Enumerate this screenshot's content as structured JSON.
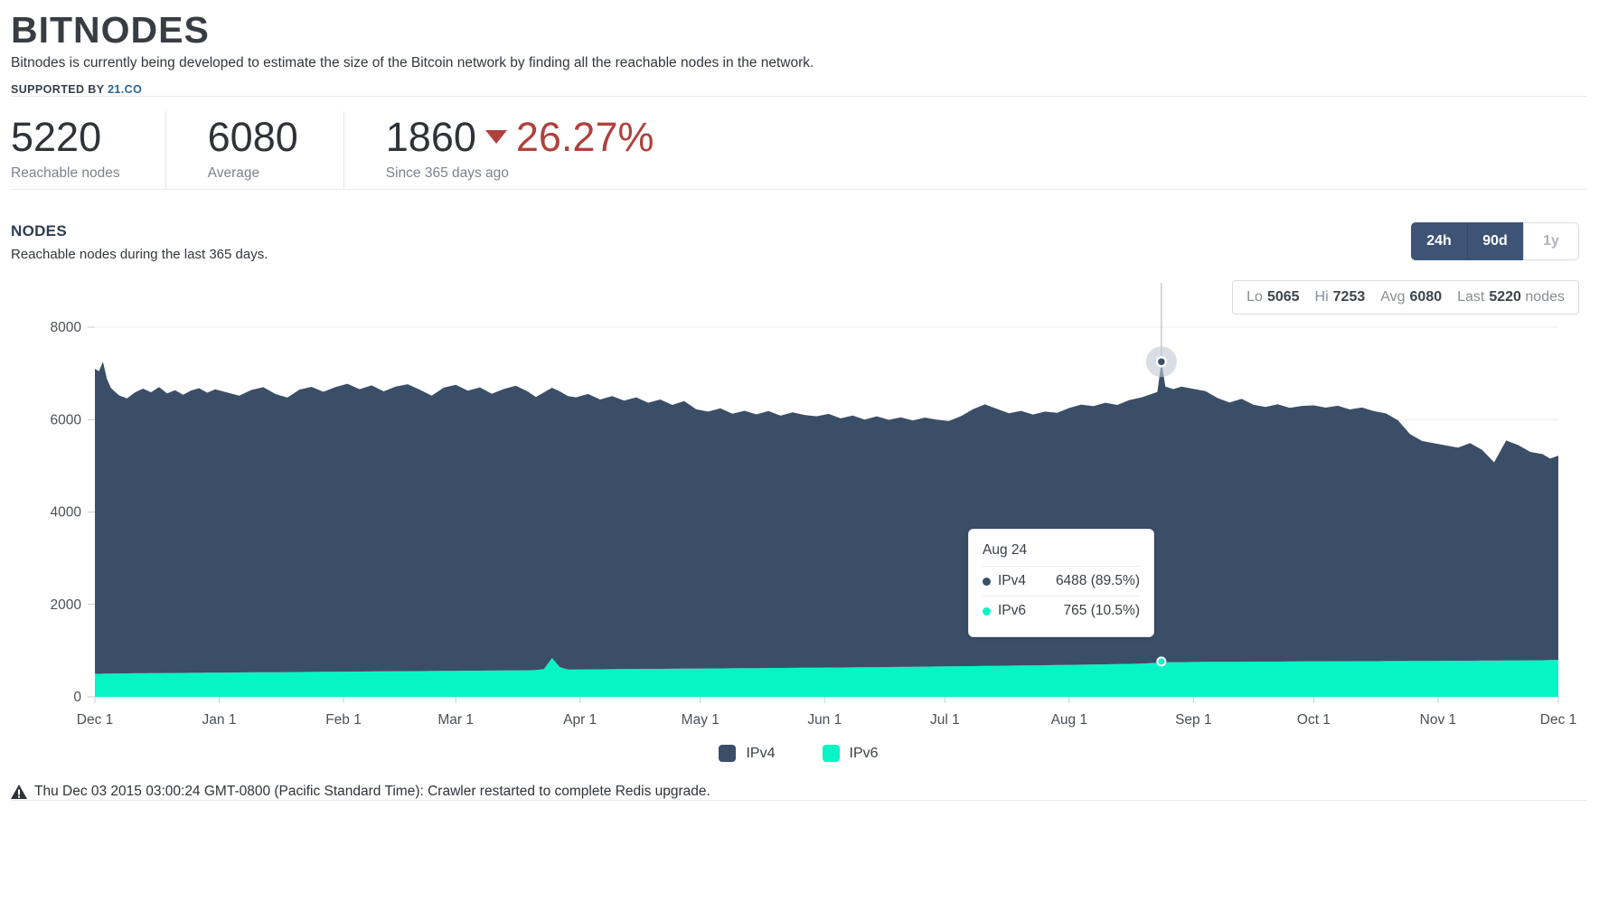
{
  "header": {
    "logo": "BITNODES",
    "tagline": "Bitnodes is currently being developed to estimate the size of the Bitcoin network by finding all the reachable nodes in the network.",
    "supported_by_label": "SUPPORTED BY",
    "supported_by_link": "21.CO"
  },
  "stats": [
    {
      "value": "5220",
      "label": "Reachable nodes"
    },
    {
      "value": "6080",
      "label": "Average"
    },
    {
      "value": "1860",
      "delta_direction": "down",
      "delta_pct": "26.27%",
      "label": "Since 365 days ago"
    }
  ],
  "section": {
    "title": "NODES",
    "subtitle": "Reachable nodes during the last 365 days.",
    "range_buttons": [
      {
        "label": "24h",
        "selected": true
      },
      {
        "label": "90d",
        "selected": true
      },
      {
        "label": "1y",
        "selected": false
      }
    ],
    "summary": {
      "lo_label": "Lo",
      "lo": "5065",
      "hi_label": "Hi",
      "hi": "7253",
      "avg_label": "Avg",
      "avg": "6080",
      "last_label": "Last",
      "last": "5220",
      "units": "nodes"
    }
  },
  "tooltip": {
    "title": "Aug 24",
    "rows": [
      {
        "name": "IPv4",
        "value": "6488 (89.5%)"
      },
      {
        "name": "IPv6",
        "value": "765 (10.5%)"
      }
    ]
  },
  "legend": [
    {
      "label": "IPv4"
    },
    {
      "label": "IPv6"
    }
  ],
  "notice": "Thu Dec 03 2015 03:00:24 GMT-0800 (Pacific Standard Time): Crawler restarted to complete Redis upgrade.",
  "colors": {
    "ipv4": "#3B4E68",
    "ipv6": "#07F5C6",
    "negative_red": "#B0413D",
    "link_blue": "#2A6496",
    "button_navy": "#3D5476",
    "heading_navy": "#2C3E50"
  },
  "chart_data": {
    "type": "area",
    "stacked": true,
    "title": "Reachable nodes during the last 365 days",
    "xlabel": "",
    "ylabel": "",
    "ylim": [
      0,
      8000
    ],
    "yticks": [
      0,
      2000,
      4000,
      6000,
      8000
    ],
    "grid": true,
    "legend_position": "bottom",
    "series_names": [
      "IPv4",
      "IPv6"
    ],
    "x_ticks": [
      {
        "day": 0,
        "label": "Dec 1"
      },
      {
        "day": 31,
        "label": "Jan 1"
      },
      {
        "day": 62,
        "label": "Feb 1"
      },
      {
        "day": 90,
        "label": "Mar 1"
      },
      {
        "day": 121,
        "label": "Apr 1"
      },
      {
        "day": 151,
        "label": "May 1"
      },
      {
        "day": 182,
        "label": "Jun 1"
      },
      {
        "day": 212,
        "label": "Jul 1"
      },
      {
        "day": 243,
        "label": "Aug 1"
      },
      {
        "day": 274,
        "label": "Sep 1"
      },
      {
        "day": 304,
        "label": "Oct 1"
      },
      {
        "day": 335,
        "label": "Nov 1"
      },
      {
        "day": 365,
        "label": "Dec 1"
      }
    ],
    "points_format": [
      "day",
      "ipv4",
      "ipv6"
    ],
    "points": [
      [
        0,
        6600,
        500
      ],
      [
        1,
        6550,
        498
      ],
      [
        2,
        6750,
        500
      ],
      [
        3,
        6380,
        502
      ],
      [
        4,
        6180,
        504
      ],
      [
        6,
        6020,
        506
      ],
      [
        8,
        5950,
        508
      ],
      [
        10,
        6080,
        510
      ],
      [
        12,
        6160,
        510
      ],
      [
        14,
        6080,
        512
      ],
      [
        16,
        6190,
        514
      ],
      [
        18,
        6050,
        516
      ],
      [
        20,
        6120,
        516
      ],
      [
        22,
        6020,
        518
      ],
      [
        24,
        6110,
        520
      ],
      [
        26,
        6160,
        520
      ],
      [
        28,
        6060,
        522
      ],
      [
        30,
        6130,
        524
      ],
      [
        33,
        6060,
        526
      ],
      [
        36,
        5990,
        528
      ],
      [
        39,
        6110,
        530
      ],
      [
        42,
        6170,
        532
      ],
      [
        45,
        6020,
        534
      ],
      [
        48,
        5940,
        536
      ],
      [
        51,
        6110,
        538
      ],
      [
        54,
        6170,
        540
      ],
      [
        57,
        6060,
        542
      ],
      [
        60,
        6160,
        544
      ],
      [
        63,
        6230,
        546
      ],
      [
        66,
        6110,
        548
      ],
      [
        69,
        6190,
        550
      ],
      [
        72,
        6060,
        552
      ],
      [
        75,
        6160,
        554
      ],
      [
        78,
        6210,
        556
      ],
      [
        81,
        6090,
        558
      ],
      [
        84,
        5960,
        560
      ],
      [
        87,
        6130,
        562
      ],
      [
        90,
        6190,
        564
      ],
      [
        93,
        6060,
        566
      ],
      [
        96,
        6130,
        568
      ],
      [
        99,
        5990,
        570
      ],
      [
        102,
        6090,
        572
      ],
      [
        105,
        6160,
        574
      ],
      [
        108,
        6030,
        576
      ],
      [
        110,
        5910,
        578
      ],
      [
        112,
        5990,
        600
      ],
      [
        114,
        5850,
        840
      ],
      [
        116,
        5970,
        640
      ],
      [
        118,
        5920,
        590
      ],
      [
        120,
        5890,
        592
      ],
      [
        123,
        5960,
        594
      ],
      [
        126,
        5840,
        596
      ],
      [
        129,
        5910,
        598
      ],
      [
        132,
        5810,
        600
      ],
      [
        135,
        5880,
        602
      ],
      [
        138,
        5760,
        604
      ],
      [
        141,
        5830,
        606
      ],
      [
        144,
        5710,
        608
      ],
      [
        147,
        5790,
        610
      ],
      [
        150,
        5610,
        612
      ],
      [
        153,
        5560,
        614
      ],
      [
        156,
        5630,
        616
      ],
      [
        159,
        5510,
        618
      ],
      [
        162,
        5570,
        620
      ],
      [
        165,
        5490,
        622
      ],
      [
        168,
        5560,
        624
      ],
      [
        171,
        5460,
        626
      ],
      [
        174,
        5530,
        628
      ],
      [
        177,
        5470,
        630
      ],
      [
        180,
        5440,
        632
      ],
      [
        183,
        5490,
        634
      ],
      [
        186,
        5390,
        636
      ],
      [
        189,
        5450,
        638
      ],
      [
        192,
        5360,
        640
      ],
      [
        195,
        5430,
        642
      ],
      [
        198,
        5350,
        645
      ],
      [
        201,
        5400,
        648
      ],
      [
        204,
        5330,
        651
      ],
      [
        207,
        5390,
        654
      ],
      [
        210,
        5340,
        657
      ],
      [
        213,
        5310,
        660
      ],
      [
        216,
        5410,
        663
      ],
      [
        219,
        5560,
        666
      ],
      [
        222,
        5660,
        669
      ],
      [
        225,
        5560,
        672
      ],
      [
        228,
        5460,
        675
      ],
      [
        231,
        5510,
        678
      ],
      [
        234,
        5430,
        681
      ],
      [
        237,
        5490,
        684
      ],
      [
        240,
        5460,
        688
      ],
      [
        243,
        5560,
        692
      ],
      [
        246,
        5630,
        696
      ],
      [
        249,
        5590,
        700
      ],
      [
        252,
        5660,
        704
      ],
      [
        255,
        5610,
        708
      ],
      [
        258,
        5710,
        714
      ],
      [
        261,
        5760,
        720
      ],
      [
        263,
        5810,
        728
      ],
      [
        265,
        5860,
        740
      ],
      [
        266,
        6488,
        765
      ],
      [
        267,
        5960,
        752
      ],
      [
        269,
        5910,
        750
      ],
      [
        271,
        5960,
        752
      ],
      [
        274,
        5910,
        755
      ],
      [
        277,
        5860,
        756
      ],
      [
        280,
        5710,
        757
      ],
      [
        283,
        5610,
        758
      ],
      [
        286,
        5690,
        759
      ],
      [
        289,
        5560,
        760
      ],
      [
        292,
        5510,
        762
      ],
      [
        295,
        5570,
        763
      ],
      [
        298,
        5490,
        764
      ],
      [
        301,
        5530,
        766
      ],
      [
        304,
        5540,
        768
      ],
      [
        307,
        5490,
        769
      ],
      [
        310,
        5530,
        770
      ],
      [
        313,
        5450,
        771
      ],
      [
        316,
        5490,
        772
      ],
      [
        319,
        5410,
        773
      ],
      [
        322,
        5360,
        774
      ],
      [
        325,
        5210,
        775
      ],
      [
        328,
        4910,
        776
      ],
      [
        331,
        4760,
        778
      ],
      [
        334,
        4710,
        779
      ],
      [
        337,
        4660,
        780
      ],
      [
        340,
        4610,
        782
      ],
      [
        343,
        4710,
        783
      ],
      [
        346,
        4560,
        784
      ],
      [
        349,
        4290,
        785
      ],
      [
        352,
        4760,
        787
      ],
      [
        355,
        4660,
        789
      ],
      [
        358,
        4510,
        791
      ],
      [
        361,
        4460,
        793
      ],
      [
        363,
        4360,
        796
      ],
      [
        365,
        4420,
        800
      ]
    ],
    "highlight": {
      "day": 266,
      "label": "Aug 24",
      "ipv4": 6488,
      "ipv6": 765,
      "total": 7253
    }
  }
}
